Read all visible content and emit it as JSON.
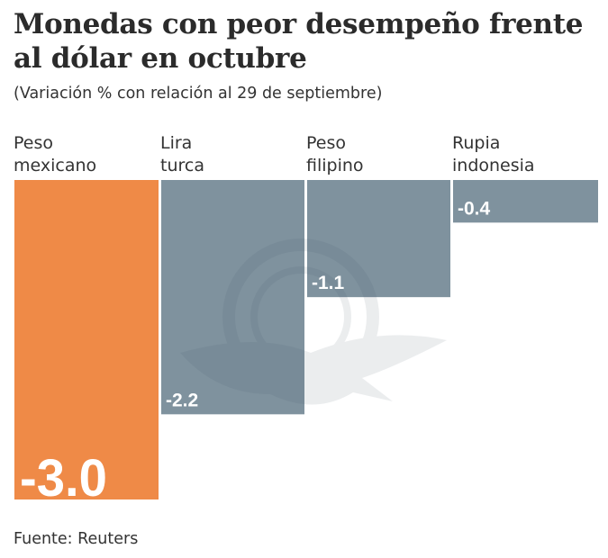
{
  "header": {
    "title": "Monedas con peor desempeño frente al dólar en octubre",
    "subtitle": "(Variación % con relación al 29 de septiembre)"
  },
  "footer": {
    "source": "Fuente: Reuters"
  },
  "colors": {
    "highlight": "#ef8a47",
    "bar": "#7f929e",
    "label": "#ffffff"
  },
  "chart_data": {
    "type": "bar",
    "title": "Monedas con peor desempeño frente al dólar en octubre",
    "subtitle": "(Variación % con relación al 29 de septiembre)",
    "categories": [
      "Peso\nmexicano",
      "Lira\nturca",
      "Peso\nfilipino",
      "Rupia\nindonesia"
    ],
    "values": [
      -3.0,
      -2.2,
      -1.1,
      -0.4
    ],
    "value_labels": [
      "-3.0",
      "-2.2",
      "-1.1",
      "-0.4"
    ],
    "highlight_index": 0,
    "xlabel": "",
    "ylabel": "",
    "ylim": [
      -3.0,
      0
    ],
    "grid": false,
    "legend": "none",
    "source": "Fuente: Reuters"
  }
}
